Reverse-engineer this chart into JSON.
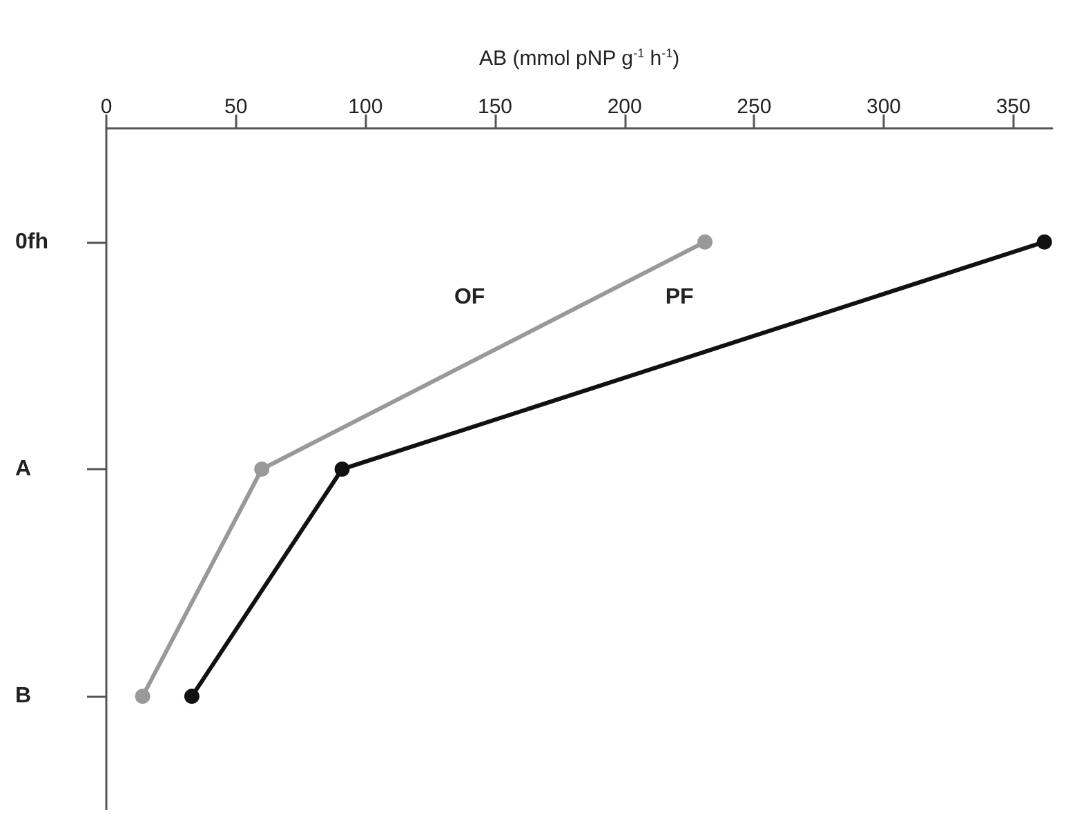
{
  "chart_data": {
    "type": "line",
    "xlabel": "AB (mmol pNP g$^{-1}$ h$^{-1}$)",
    "orientation": "horizontal",
    "categories": [
      "0fh",
      "A",
      "B"
    ],
    "series": [
      {
        "name": "OF",
        "color": "#999999",
        "values": [
          231,
          60,
          14
        ]
      },
      {
        "name": "PF",
        "color": "#111111",
        "values": [
          362,
          91,
          33
        ]
      }
    ],
    "xlim": [
      0,
      365
    ],
    "xticks": [
      0,
      50,
      100,
      150,
      200,
      250,
      300,
      350
    ],
    "grid": false,
    "legend": false,
    "marker": "circle",
    "line_style": "solid"
  }
}
